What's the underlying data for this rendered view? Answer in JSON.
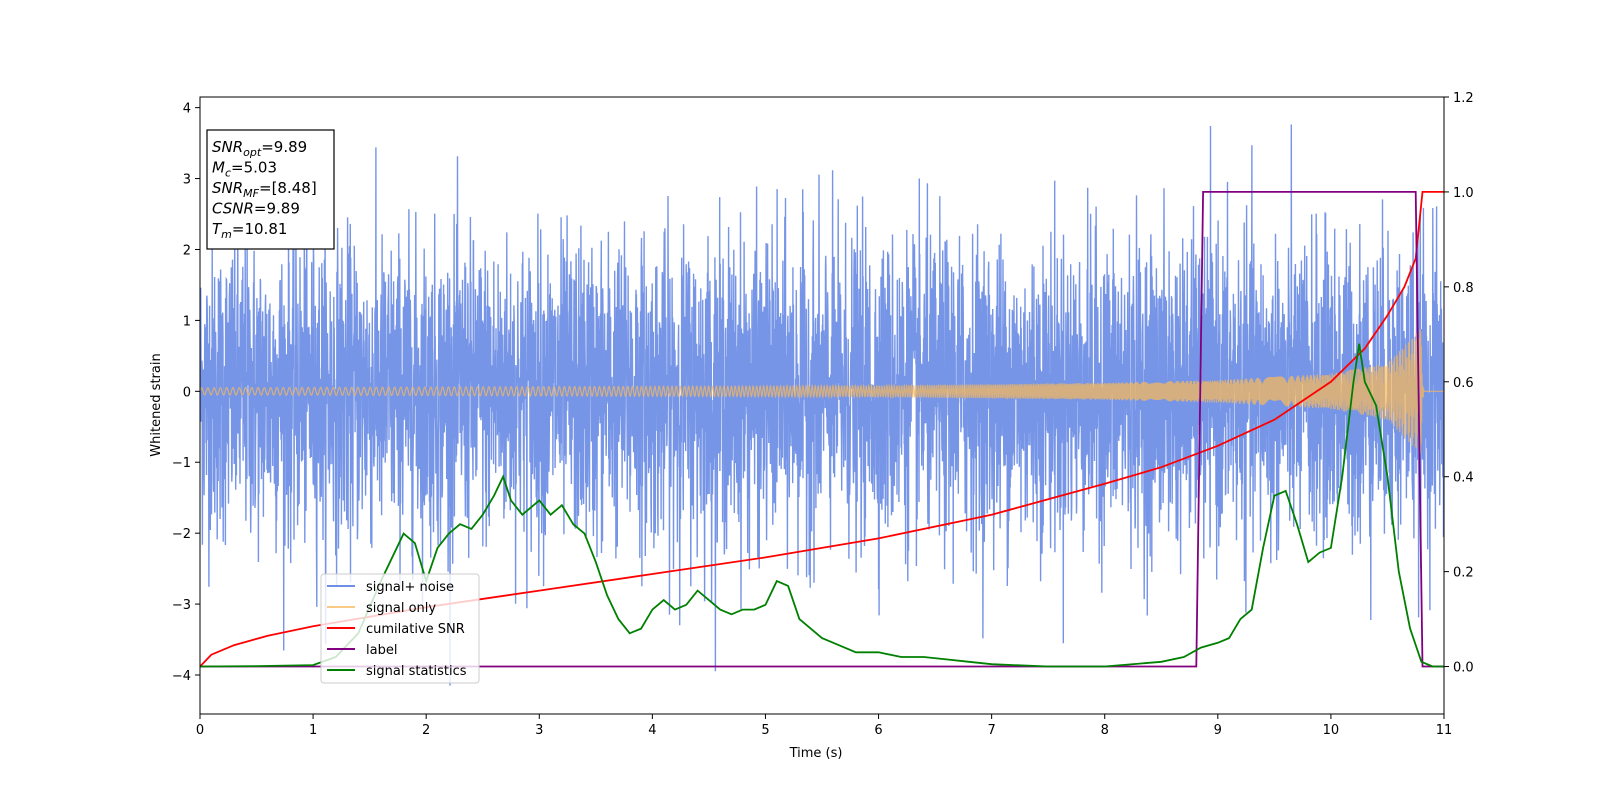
{
  "chart_data": {
    "type": "line",
    "title": "",
    "xlabel": "Time (s)",
    "ylabel": "Whitened strain",
    "y2label": "",
    "xlim": [
      0,
      11
    ],
    "ylim": [
      -4.55,
      4.15
    ],
    "y2lim": [
      -0.1,
      1.2
    ],
    "x_ticks": [
      0,
      1,
      2,
      3,
      4,
      5,
      6,
      7,
      8,
      9,
      10,
      11
    ],
    "y_ticks": [
      -4,
      -3,
      -2,
      -1,
      0,
      1,
      2,
      3,
      4
    ],
    "y2_ticks": [
      0.0,
      0.2,
      0.4,
      0.6,
      0.8,
      1.0,
      1.2
    ],
    "grid": false,
    "legend_position": "lower-left",
    "annotation": [
      {
        "base": "SNR",
        "sub": "opt",
        "value": "=9.89"
      },
      {
        "base": "M",
        "sub": "c",
        "value": "=5.03"
      },
      {
        "base": "SNR",
        "sub": "MF",
        "value": "=[8.48]"
      },
      {
        "base": "CSNR",
        "sub": "",
        "value": "=9.89"
      },
      {
        "base": "T",
        "sub": "m",
        "value": "=10.81"
      }
    ],
    "series": [
      {
        "name": "signal+ noise",
        "axis": "left",
        "color": "#6f8fe6",
        "kind": "noise",
        "std": 1.05,
        "min": -4.15,
        "max": 3.8,
        "x_range": [
          0,
          11
        ]
      },
      {
        "name": "signal only",
        "axis": "left",
        "color": "#f5b85e",
        "kind": "chirp",
        "envelope_x": [
          0,
          2,
          4,
          6,
          8,
          9,
          10,
          10.5,
          10.8,
          10.82,
          11
        ],
        "envelope_y": [
          0.05,
          0.06,
          0.07,
          0.08,
          0.12,
          0.16,
          0.25,
          0.4,
          0.9,
          0,
          0
        ]
      },
      {
        "name": "cumilative SNR",
        "axis": "right",
        "color": "#ff0000",
        "x": [
          0,
          0.1,
          0.3,
          0.6,
          1,
          1.5,
          2,
          3,
          4,
          5,
          6,
          7,
          8,
          8.5,
          9,
          9.5,
          10,
          10.3,
          10.5,
          10.65,
          10.75,
          10.81,
          11
        ],
        "y": [
          0.0,
          0.025,
          0.045,
          0.065,
          0.085,
          0.105,
          0.125,
          0.16,
          0.195,
          0.23,
          0.27,
          0.32,
          0.385,
          0.42,
          0.465,
          0.52,
          0.6,
          0.67,
          0.74,
          0.8,
          0.86,
          1.0,
          1.0
        ]
      },
      {
        "name": "label",
        "axis": "right",
        "color": "#800080",
        "x": [
          0,
          8.81,
          8.87,
          10.75,
          10.81,
          11
        ],
        "y": [
          0,
          0,
          1,
          1,
          0,
          0
        ]
      },
      {
        "name": "signal statistics",
        "axis": "right",
        "color": "#008000",
        "x": [
          0,
          0.5,
          1.0,
          1.2,
          1.4,
          1.6,
          1.8,
          1.9,
          2.0,
          2.1,
          2.2,
          2.3,
          2.4,
          2.5,
          2.6,
          2.68,
          2.75,
          2.85,
          2.95,
          3.0,
          3.1,
          3.2,
          3.3,
          3.4,
          3.5,
          3.6,
          3.7,
          3.8,
          3.9,
          4.0,
          4.1,
          4.2,
          4.3,
          4.4,
          4.5,
          4.6,
          4.7,
          4.8,
          4.9,
          5.0,
          5.1,
          5.2,
          5.3,
          5.4,
          5.5,
          5.6,
          5.8,
          6.0,
          6.2,
          6.4,
          6.6,
          6.8,
          7.0,
          7.5,
          8.0,
          8.5,
          8.7,
          8.85,
          9.0,
          9.1,
          9.2,
          9.3,
          9.4,
          9.5,
          9.6,
          9.7,
          9.8,
          9.9,
          10.0,
          10.1,
          10.2,
          10.25,
          10.3,
          10.4,
          10.5,
          10.6,
          10.7,
          10.8,
          10.9,
          11.0
        ],
        "y": [
          0.0,
          0.001,
          0.003,
          0.02,
          0.07,
          0.18,
          0.28,
          0.26,
          0.18,
          0.25,
          0.28,
          0.3,
          0.29,
          0.32,
          0.36,
          0.4,
          0.35,
          0.32,
          0.34,
          0.35,
          0.32,
          0.34,
          0.3,
          0.28,
          0.22,
          0.15,
          0.1,
          0.07,
          0.08,
          0.12,
          0.14,
          0.12,
          0.13,
          0.16,
          0.14,
          0.12,
          0.11,
          0.12,
          0.12,
          0.13,
          0.18,
          0.17,
          0.1,
          0.08,
          0.06,
          0.05,
          0.03,
          0.03,
          0.02,
          0.02,
          0.015,
          0.01,
          0.005,
          0.0,
          0.0,
          0.01,
          0.02,
          0.04,
          0.05,
          0.06,
          0.1,
          0.12,
          0.25,
          0.36,
          0.37,
          0.3,
          0.22,
          0.24,
          0.25,
          0.4,
          0.6,
          0.68,
          0.6,
          0.55,
          0.4,
          0.2,
          0.08,
          0.01,
          0.0,
          0.0
        ]
      }
    ]
  }
}
